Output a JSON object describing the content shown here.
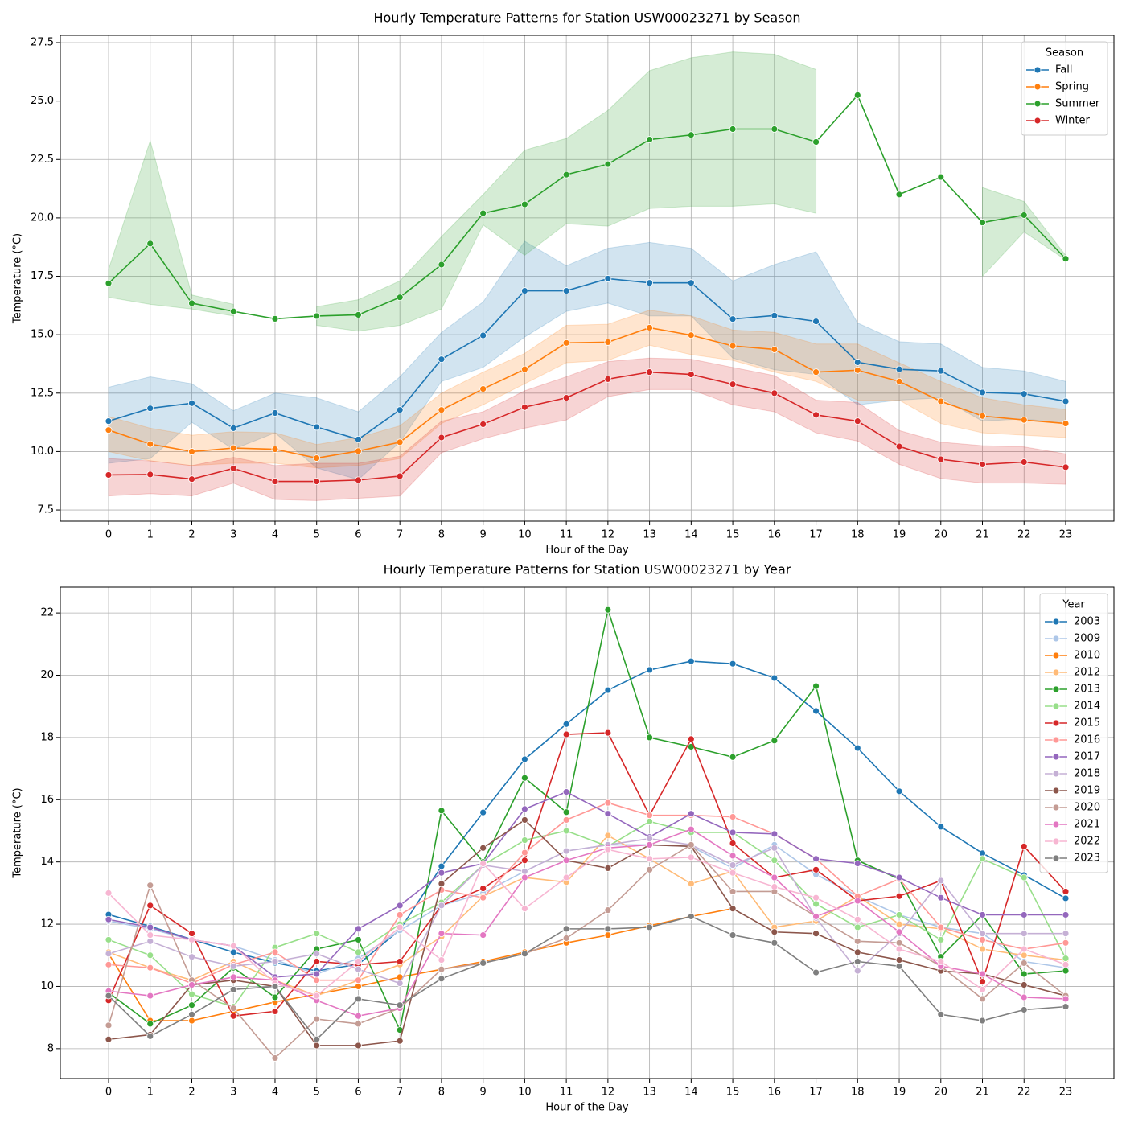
{
  "chart_data": [
    {
      "type": "line",
      "title": "Hourly Temperature Patterns for Station USW00023271 by Season",
      "xlabel": "Hour of the Day",
      "ylabel": "Temperature (°C)",
      "x": [
        0,
        1,
        2,
        3,
        4,
        5,
        6,
        7,
        8,
        9,
        10,
        11,
        12,
        13,
        14,
        15,
        16,
        17,
        18,
        19,
        20,
        21,
        22,
        23
      ],
      "xlim": [
        -1.16,
        24.16
      ],
      "xticks": [
        0,
        1,
        2,
        3,
        4,
        5,
        6,
        7,
        8,
        9,
        10,
        11,
        12,
        13,
        14,
        15,
        16,
        17,
        18,
        19,
        20,
        21,
        22,
        23
      ],
      "ylim": [
        7.02,
        27.81
      ],
      "yticks": [
        7.5,
        {
          "value": 10,
          "label": "10.0"
        },
        12.5,
        {
          "value": 15,
          "label": "15.0"
        },
        17.5,
        {
          "value": 20,
          "label": "20.0"
        },
        22.5,
        {
          "value": 25,
          "label": "25.0"
        },
        27.5
      ],
      "grid": true,
      "legend_title": "Season",
      "legend": "upper right",
      "series": [
        {
          "name": "Fall",
          "color": "#1f77b4",
          "values": [
            11.3,
            11.85,
            12.07,
            11.0,
            11.65,
            11.05,
            10.52,
            11.78,
            13.95,
            14.97,
            16.88,
            16.88,
            17.4,
            17.22,
            17.22,
            15.67,
            15.82,
            15.57,
            13.82,
            13.52,
            13.45,
            12.53,
            12.47,
            12.15
          ],
          "lower": [
            9.5,
            9.7,
            11.25,
            10.1,
            10.8,
            9.3,
            8.8,
            10.4,
            13.0,
            13.6,
            14.9,
            16.0,
            16.35,
            15.8,
            15.8,
            14.0,
            13.5,
            13.3,
            12.0,
            12.2,
            12.3,
            11.3,
            11.4,
            11.2
          ],
          "upper": [
            12.75,
            13.2,
            12.9,
            11.75,
            12.5,
            12.3,
            11.7,
            13.2,
            15.1,
            16.4,
            19.0,
            17.95,
            18.7,
            18.95,
            18.7,
            17.3,
            18.0,
            18.55,
            15.5,
            14.7,
            14.6,
            13.6,
            13.45,
            13.0
          ]
        },
        {
          "name": "Spring",
          "color": "#ff7f0e",
          "values": [
            10.92,
            10.32,
            10.0,
            10.15,
            10.1,
            9.72,
            10.02,
            10.4,
            11.78,
            12.68,
            13.52,
            14.65,
            14.68,
            15.3,
            14.98,
            14.52,
            14.37,
            13.4,
            13.48,
            13.0,
            12.15,
            11.52,
            11.35,
            11.2
          ],
          "lower": [
            10.0,
            9.6,
            9.4,
            9.5,
            9.5,
            9.3,
            9.4,
            9.7,
            11.2,
            12.0,
            12.9,
            13.8,
            13.9,
            14.55,
            14.15,
            13.9,
            13.4,
            13.0,
            12.2,
            12.2,
            11.2,
            10.8,
            10.7,
            10.6
          ],
          "upper": [
            11.5,
            11.0,
            10.7,
            10.85,
            10.8,
            10.3,
            10.6,
            11.1,
            12.5,
            13.4,
            14.2,
            15.4,
            15.45,
            16.05,
            15.8,
            15.2,
            15.1,
            14.6,
            14.6,
            13.8,
            13.0,
            12.3,
            12.0,
            11.8
          ]
        },
        {
          "name": "Summer",
          "color": "#2ca02c",
          "values": [
            17.2,
            18.9,
            16.35,
            16.0,
            15.68,
            15.8,
            15.85,
            16.6,
            18.0,
            20.2,
            20.58,
            21.85,
            22.3,
            23.35,
            23.55,
            23.8,
            23.8,
            23.25,
            25.25,
            21.0,
            21.75,
            19.8,
            20.12,
            18.25
          ],
          "lower": [
            16.6,
            16.3,
            16.1,
            15.8,
            null,
            15.4,
            15.15,
            15.4,
            16.1,
            19.7,
            18.4,
            19.75,
            19.65,
            20.4,
            20.5,
            20.5,
            20.6,
            20.2,
            null,
            null,
            null,
            17.5,
            19.4,
            18.2
          ],
          "upper": [
            17.8,
            23.3,
            16.7,
            16.3,
            null,
            16.2,
            16.5,
            17.3,
            19.2,
            21.0,
            22.9,
            23.4,
            24.6,
            26.3,
            26.85,
            27.1,
            27.0,
            26.35,
            null,
            null,
            null,
            21.3,
            20.7,
            18.4
          ]
        },
        {
          "name": "Winter",
          "color": "#d62728",
          "values": [
            9.0,
            9.02,
            8.82,
            9.28,
            8.72,
            8.72,
            8.78,
            8.95,
            10.6,
            11.17,
            11.9,
            12.3,
            13.1,
            13.4,
            13.3,
            12.88,
            12.5,
            11.57,
            11.3,
            10.22,
            9.67,
            9.45,
            9.55,
            9.33
          ],
          "lower": [
            8.1,
            8.2,
            8.1,
            8.65,
            7.95,
            7.9,
            8.0,
            8.1,
            9.95,
            10.55,
            11.0,
            11.35,
            12.35,
            12.65,
            12.65,
            12.0,
            11.7,
            10.8,
            10.45,
            9.45,
            8.85,
            8.65,
            8.65,
            8.6
          ],
          "upper": [
            9.7,
            9.6,
            9.4,
            9.75,
            9.4,
            9.5,
            9.5,
            9.8,
            11.3,
            11.7,
            12.6,
            13.2,
            13.85,
            14.0,
            13.95,
            13.6,
            13.25,
            12.2,
            12.1,
            10.9,
            10.4,
            10.25,
            10.2,
            9.9
          ]
        }
      ]
    },
    {
      "type": "line",
      "title": "Hourly Temperature Patterns for Station USW00023271 by Year",
      "xlabel": "Hour of the Day",
      "ylabel": "Temperature (°C)",
      "x": [
        0,
        1,
        2,
        3,
        4,
        5,
        6,
        7,
        8,
        9,
        10,
        11,
        12,
        13,
        14,
        15,
        16,
        17,
        18,
        19,
        20,
        21,
        22,
        23
      ],
      "xlim": [
        -1.16,
        24.16
      ],
      "xticks": [
        0,
        1,
        2,
        3,
        4,
        5,
        6,
        7,
        8,
        9,
        10,
        11,
        12,
        13,
        14,
        15,
        16,
        17,
        18,
        19,
        20,
        21,
        22,
        23
      ],
      "ylim": [
        7.04,
        22.83
      ],
      "yticks": [
        8,
        10,
        12,
        14,
        16,
        18,
        20,
        22
      ],
      "grid": true,
      "legend_title": "Year",
      "legend": "upper right",
      "series": [
        {
          "name": "2003",
          "color": "#1f77b4",
          "values": [
            12.31,
            11.93,
            11.51,
            11.1,
            10.76,
            10.5,
            10.71,
            11.82,
            13.86,
            15.59,
            17.3,
            18.43,
            19.52,
            20.17,
            20.45,
            20.37,
            19.91,
            18.85,
            17.66,
            16.27,
            15.13,
            14.28,
            13.58,
            12.83
          ]
        },
        {
          "name": "2009",
          "color": "#aec7e8",
          "values": [
            12.1,
            11.85,
            11.5,
            11.3,
            10.85,
            10.4,
            10.9,
            11.8,
            12.6,
            13.0,
            13.7,
            14.35,
            14.55,
            14.55,
            14.5,
            13.8,
            14.55,
            13.6,
            12.9,
            12.3,
            11.9,
            11.7,
            10.8,
            10.6
          ]
        },
        {
          "name": "2010",
          "color": "#ff7f0e",
          "values": [
            11.05,
            8.9,
            8.9,
            9.2,
            9.5,
            9.75,
            10.0,
            10.3,
            10.55,
            10.8,
            11.1,
            11.4,
            11.65,
            11.95,
            12.25,
            12.5,
            null,
            null,
            null,
            null,
            null,
            null,
            null,
            null
          ]
        },
        {
          "name": "2012",
          "color": "#ffbb78",
          "values": [
            11.1,
            10.6,
            10.2,
            10.8,
            10.2,
            9.7,
            10.2,
            10.7,
            11.6,
            12.9,
            13.5,
            13.35,
            14.85,
            14.1,
            13.3,
            13.7,
            11.9,
            12.1,
            12.9,
            12.0,
            11.85,
            11.2,
            11.0,
            10.85
          ]
        },
        {
          "name": "2013",
          "color": "#2ca02c",
          "values": [
            9.8,
            8.8,
            9.4,
            10.6,
            9.65,
            11.2,
            11.5,
            8.6,
            15.65,
            14.0,
            16.7,
            15.6,
            22.1,
            18.0,
            17.7,
            17.37,
            17.9,
            19.65,
            14.05,
            13.45,
            10.95,
            12.3,
            10.4,
            10.5
          ]
        },
        {
          "name": "2014",
          "color": "#98df8a",
          "values": [
            11.5,
            11.0,
            9.75,
            9.35,
            11.25,
            11.7,
            11.1,
            12.0,
            12.7,
            13.9,
            14.7,
            15.0,
            14.5,
            15.3,
            14.95,
            14.95,
            14.05,
            12.65,
            11.9,
            12.3,
            11.5,
            14.1,
            13.5,
            10.9
          ]
        },
        {
          "name": "2015",
          "color": "#d62728",
          "values": [
            9.55,
            12.6,
            11.7,
            9.05,
            9.2,
            10.8,
            10.7,
            10.8,
            12.6,
            13.15,
            14.05,
            18.1,
            18.15,
            15.5,
            17.95,
            14.6,
            13.5,
            13.75,
            12.75,
            12.9,
            13.4,
            10.15,
            14.5,
            13.05
          ]
        },
        {
          "name": "2016",
          "color": "#ff9896",
          "values": [
            10.7,
            10.6,
            10.1,
            10.7,
            11.1,
            10.2,
            10.2,
            12.3,
            13.1,
            12.85,
            14.3,
            15.35,
            15.9,
            15.5,
            15.5,
            15.45,
            14.9,
            14.1,
            12.9,
            13.45,
            11.9,
            11.5,
            11.2,
            11.4
          ]
        },
        {
          "name": "2017",
          "color": "#9467bd",
          "values": [
            12.15,
            11.9,
            11.5,
            11.3,
            10.3,
            10.4,
            11.85,
            12.6,
            13.65,
            13.95,
            15.7,
            16.25,
            15.55,
            14.8,
            15.55,
            14.95,
            14.9,
            14.1,
            13.95,
            13.5,
            12.85,
            12.3,
            12.3,
            12.3
          ]
        },
        {
          "name": "2018",
          "color": "#c5b0d5",
          "values": [
            11.05,
            11.45,
            10.95,
            10.65,
            10.8,
            11.05,
            10.55,
            10.1,
            12.6,
            13.9,
            13.7,
            14.35,
            14.55,
            14.75,
            14.55,
            13.9,
            14.45,
            12.2,
            10.5,
            11.7,
            13.4,
            11.7,
            11.7,
            11.7
          ]
        },
        {
          "name": "2019",
          "color": "#8c564b",
          "values": [
            8.3,
            8.45,
            10.05,
            10.2,
            10.0,
            8.1,
            8.1,
            8.25,
            13.3,
            14.45,
            15.35,
            14.05,
            13.8,
            14.55,
            14.5,
            12.5,
            11.75,
            11.7,
            11.1,
            10.85,
            10.5,
            10.4,
            10.05,
            9.7
          ]
        },
        {
          "name": "2020",
          "color": "#c49c94",
          "values": [
            8.75,
            13.25,
            10.2,
            9.3,
            7.7,
            8.95,
            8.8,
            9.3,
            10.55,
            10.75,
            11.05,
            11.55,
            12.45,
            13.75,
            14.55,
            13.05,
            13.05,
            12.25,
            11.45,
            11.4,
            10.65,
            9.6,
            10.75,
            9.7
          ]
        },
        {
          "name": "2021",
          "color": "#e377c2",
          "values": [
            9.85,
            9.7,
            10.05,
            10.3,
            10.2,
            9.55,
            9.05,
            9.3,
            11.7,
            11.65,
            13.5,
            14.05,
            14.45,
            14.55,
            15.05,
            14.2,
            13.5,
            12.25,
            12.75,
            11.75,
            10.65,
            10.4,
            9.65,
            9.6
          ]
        },
        {
          "name": "2022",
          "color": "#f7b6d2",
          "values": [
            13.0,
            11.65,
            11.5,
            11.3,
            10.1,
            9.7,
            10.8,
            11.9,
            10.85,
            13.95,
            12.5,
            13.5,
            14.4,
            14.1,
            14.15,
            13.65,
            13.2,
            12.85,
            12.15,
            11.2,
            10.8,
            9.9,
            11.2,
            10.7
          ]
        },
        {
          "name": "2023",
          "color": "#7f7f7f",
          "values": [
            9.7,
            8.4,
            9.1,
            9.9,
            10.0,
            8.3,
            9.6,
            9.4,
            10.25,
            10.75,
            11.05,
            11.85,
            11.85,
            11.9,
            12.25,
            11.65,
            11.4,
            10.45,
            10.8,
            10.65,
            9.1,
            8.9,
            9.25,
            9.35
          ]
        }
      ]
    }
  ]
}
